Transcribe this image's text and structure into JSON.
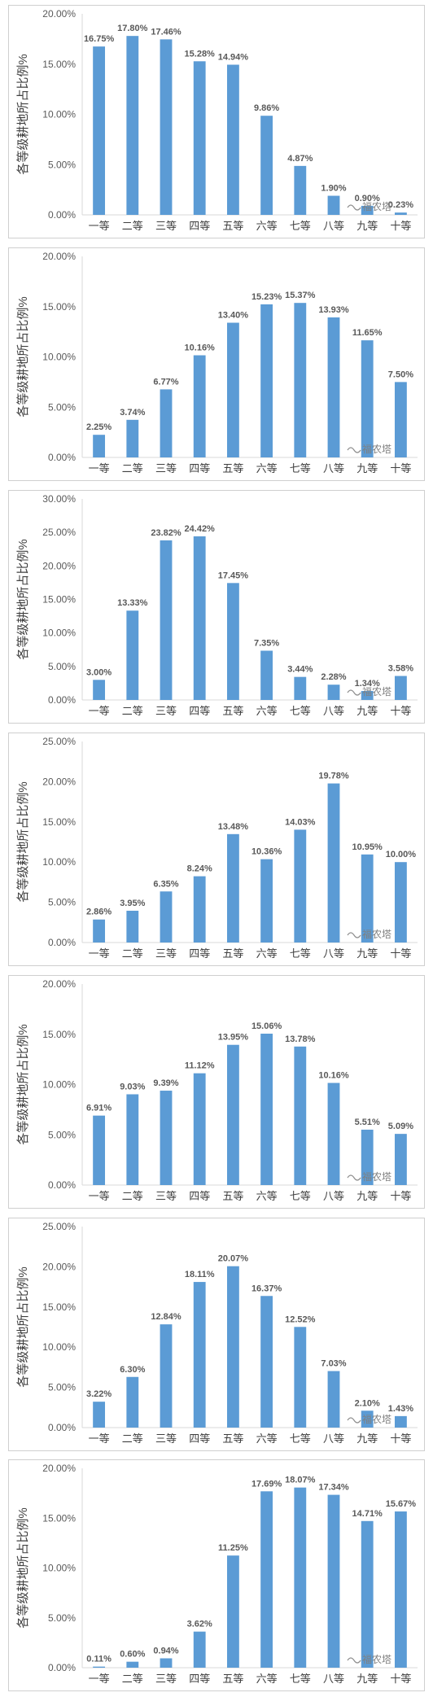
{
  "chart_data": [
    {
      "type": "bar",
      "categories": [
        "一等",
        "二等",
        "三等",
        "四等",
        "五等",
        "六等",
        "七等",
        "八等",
        "九等",
        "十等"
      ],
      "values": [
        16.75,
        17.8,
        17.46,
        15.28,
        14.94,
        9.86,
        4.87,
        1.9,
        0.9,
        0.23
      ],
      "value_labels": [
        "16.75%",
        "17.80%",
        "17.46%",
        "15.28%",
        "14.94%",
        "9.86%",
        "4.87%",
        "1.90%",
        "0.90%",
        "0.23%"
      ],
      "ylabel": "各等级耕地所占比例%",
      "yticks": [
        0,
        5,
        10,
        15,
        20
      ],
      "ytick_labels": [
        "0.00%",
        "5.00%",
        "10.00%",
        "15.00%",
        "20.00%"
      ],
      "ylim": [
        0,
        20
      ],
      "watermark": "福农塔"
    },
    {
      "type": "bar",
      "categories": [
        "一等",
        "二等",
        "三等",
        "四等",
        "五等",
        "六等",
        "七等",
        "八等",
        "九等",
        "十等"
      ],
      "values": [
        2.25,
        3.74,
        6.77,
        10.16,
        13.4,
        15.23,
        15.37,
        13.93,
        11.65,
        7.5
      ],
      "value_labels": [
        "2.25%",
        "3.74%",
        "6.77%",
        "10.16%",
        "13.40%",
        "15.23%",
        "15.37%",
        "13.93%",
        "11.65%",
        "7.50%"
      ],
      "ylabel": "各等级耕地所占比例%",
      "yticks": [
        0,
        5,
        10,
        15,
        20
      ],
      "ytick_labels": [
        "0.00%",
        "5.00%",
        "10.00%",
        "15.00%",
        "20.00%"
      ],
      "ylim": [
        0,
        20
      ],
      "watermark": "福农塔"
    },
    {
      "type": "bar",
      "categories": [
        "一等",
        "二等",
        "三等",
        "四等",
        "五等",
        "六等",
        "七等",
        "八等",
        "九等",
        "十等"
      ],
      "values": [
        3.0,
        13.33,
        23.82,
        24.42,
        17.45,
        7.35,
        3.44,
        2.28,
        1.34,
        3.58
      ],
      "value_labels": [
        "3.00%",
        "13.33%",
        "23.82%",
        "24.42%",
        "17.45%",
        "7.35%",
        "3.44%",
        "2.28%",
        "1.34%",
        "3.58%"
      ],
      "ylabel": "各等级耕地所占比例%",
      "yticks": [
        0,
        5,
        10,
        15,
        20,
        25,
        30
      ],
      "ytick_labels": [
        "0.00%",
        "5.00%",
        "10.00%",
        "15.00%",
        "20.00%",
        "25.00%",
        "30.00%"
      ],
      "ylim": [
        0,
        30
      ],
      "watermark": "福农塔"
    },
    {
      "type": "bar",
      "categories": [
        "一等",
        "二等",
        "三等",
        "四等",
        "五等",
        "六等",
        "七等",
        "八等",
        "九等",
        "十等"
      ],
      "values": [
        2.86,
        3.95,
        6.35,
        8.24,
        13.48,
        10.36,
        14.03,
        19.78,
        10.95,
        10.0
      ],
      "value_labels": [
        "2.86%",
        "3.95%",
        "6.35%",
        "8.24%",
        "13.48%",
        "10.36%",
        "14.03%",
        "19.78%",
        "10.95%",
        "10.00%"
      ],
      "ylabel": "各等级耕地所占比例%",
      "yticks": [
        0,
        5,
        10,
        15,
        20,
        25
      ],
      "ytick_labels": [
        "0.00%",
        "5.00%",
        "10.00%",
        "15.00%",
        "20.00%",
        "25.00%"
      ],
      "ylim": [
        0,
        25
      ],
      "watermark": "福农塔"
    },
    {
      "type": "bar",
      "categories": [
        "一等",
        "二等",
        "三等",
        "四等",
        "五等",
        "六等",
        "七等",
        "八等",
        "九等",
        "十等"
      ],
      "values": [
        6.91,
        9.03,
        9.39,
        11.12,
        13.95,
        15.06,
        13.78,
        10.16,
        5.51,
        5.09
      ],
      "value_labels": [
        "6.91%",
        "9.03%",
        "9.39%",
        "11.12%",
        "13.95%",
        "15.06%",
        "13.78%",
        "10.16%",
        "5.51%",
        "5.09%"
      ],
      "ylabel": "各等级耕地所占比例%",
      "yticks": [
        0,
        5,
        10,
        15,
        20
      ],
      "ytick_labels": [
        "0.00%",
        "5.00%",
        "10.00%",
        "15.00%",
        "20.00%"
      ],
      "ylim": [
        0,
        20
      ],
      "watermark": "福农塔"
    },
    {
      "type": "bar",
      "categories": [
        "一等",
        "二等",
        "三等",
        "四等",
        "五等",
        "六等",
        "七等",
        "八等",
        "九等",
        "十等"
      ],
      "values": [
        3.22,
        6.3,
        12.84,
        18.11,
        20.07,
        16.37,
        12.52,
        7.03,
        2.1,
        1.43
      ],
      "value_labels": [
        "3.22%",
        "6.30%",
        "12.84%",
        "18.11%",
        "20.07%",
        "16.37%",
        "12.52%",
        "7.03%",
        "2.10%",
        "1.43%"
      ],
      "ylabel": "各等级耕地所占比例%",
      "yticks": [
        0,
        5,
        10,
        15,
        20,
        25
      ],
      "ytick_labels": [
        "0.00%",
        "5.00%",
        "10.00%",
        "15.00%",
        "20.00%",
        "25.00%"
      ],
      "ylim": [
        0,
        25
      ],
      "watermark": "福农塔"
    },
    {
      "type": "bar",
      "categories": [
        "一等",
        "二等",
        "三等",
        "四等",
        "五等",
        "六等",
        "七等",
        "八等",
        "九等",
        "十等"
      ],
      "values": [
        0.11,
        0.6,
        0.94,
        3.62,
        11.25,
        17.69,
        18.07,
        17.34,
        14.71,
        15.67
      ],
      "value_labels": [
        "0.11%",
        "0.60%",
        "0.94%",
        "3.62%",
        "11.25%",
        "17.69%",
        "18.07%",
        "17.34%",
        "14.71%",
        "15.67%"
      ],
      "ylabel": "各等级耕地所占比例%",
      "yticks": [
        0,
        5,
        10,
        15,
        20
      ],
      "ytick_labels": [
        "0.00%",
        "5.00%",
        "10.00%",
        "15.00%",
        "20.00%"
      ],
      "ylim": [
        0,
        20
      ],
      "watermark": "福农塔"
    }
  ]
}
